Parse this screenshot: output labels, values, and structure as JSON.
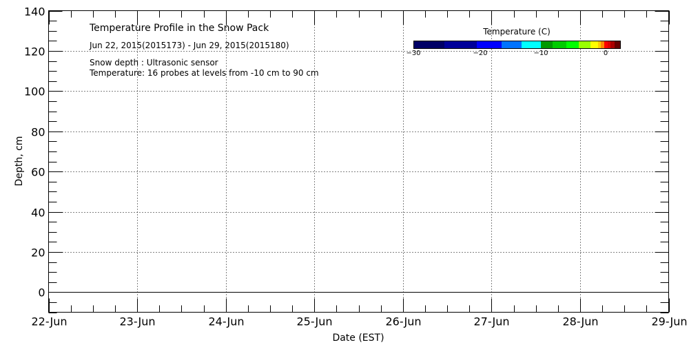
{
  "chart_data": {
    "type": "heatmap",
    "title": "Temperature Profile in the Snow Pack",
    "subtitle": "Jun 22, 2015(2015173) - Jun 29, 2015(2015180)",
    "notes": [
      "Snow depth : Ultrasonic sensor",
      "Temperature: 16 probes at levels from -10 cm to 90 cm"
    ],
    "xlabel": "Date (EST)",
    "ylabel": "Depth, cm",
    "x_ticks": [
      "22-Jun",
      "23-Jun",
      "24-Jun",
      "25-Jun",
      "26-Jun",
      "27-Jun",
      "28-Jun",
      "29-Jun"
    ],
    "xlim": [
      "2015-06-22",
      "2015-06-29"
    ],
    "ylim": [
      -10,
      140
    ],
    "y_ticks": [
      0,
      20,
      40,
      60,
      80,
      100,
      120,
      140
    ],
    "grid": true,
    "snow_depth": 0,
    "colorbar": {
      "title": "Temperature (C)",
      "tick_labels": [
        "-30",
        "-20",
        "-10",
        "0"
      ],
      "colors": [
        "#000066",
        "#000099",
        "#0000ff",
        "#0073ff",
        "#00ffff",
        "#009900",
        "#00cc00",
        "#00ff00",
        "#99ff00",
        "#ffff00",
        "#ffcc00",
        "#ff8800",
        "#ff0000",
        "#dd0000",
        "#aa0000",
        "#660000"
      ]
    },
    "series": []
  }
}
